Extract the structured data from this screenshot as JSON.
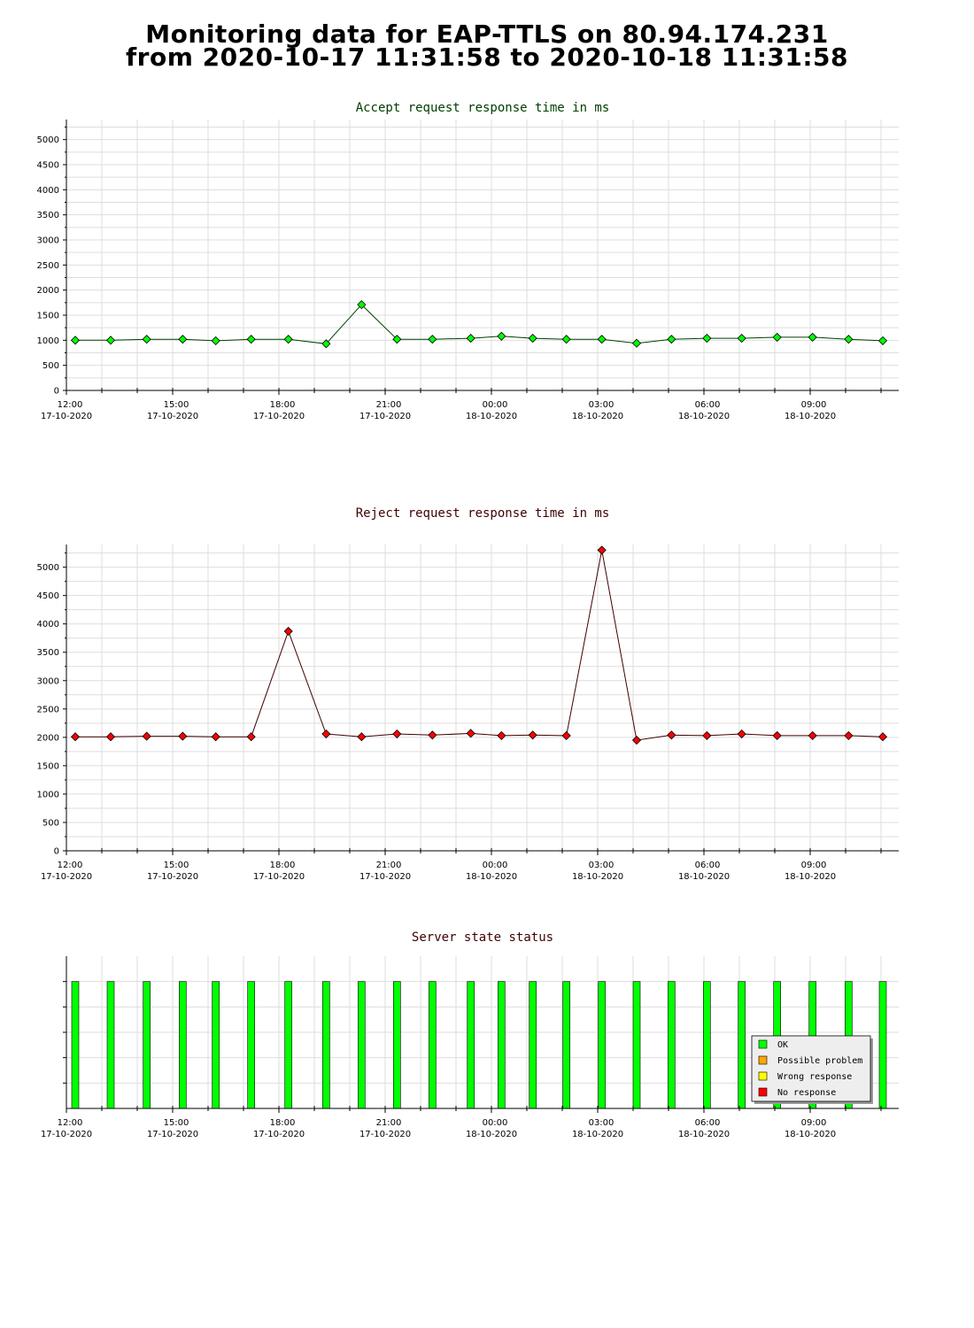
{
  "header": {
    "title_line_1": "Monitoring data for EAP-TTLS on 80.94.174.231",
    "title_line_2": "from 2020-10-17 11:31:58 to 2020-10-18 11:31:58"
  },
  "colors": {
    "accept_title": "#004000",
    "reject_title": "#400000",
    "status_title": "#400000",
    "accept_marker": "#00ff00",
    "reject_marker": "#ff0000",
    "ok": "#00ff00",
    "possible_problem": "#ffa500",
    "wrong_response": "#ffff00",
    "no_response": "#ff0000",
    "grid": "#dddddd"
  },
  "chart_data": [
    {
      "type": "line",
      "title": "Accept request response time in ms",
      "xlabel": "",
      "ylabel": "",
      "ylim": [
        0,
        5400
      ],
      "yticks": [
        0,
        500,
        1000,
        1500,
        2000,
        2500,
        3000,
        3500,
        4000,
        4500,
        5000
      ],
      "xlim": [
        "2020-10-17 12:00",
        "2020-10-18 11:30"
      ],
      "xticks": [
        {
          "time": "12:00",
          "date": "17-10-2020"
        },
        {
          "time": "15:00",
          "date": "17-10-2020"
        },
        {
          "time": "18:00",
          "date": "17-10-2020"
        },
        {
          "time": "21:00",
          "date": "17-10-2020"
        },
        {
          "time": "00:00",
          "date": "18-10-2020"
        },
        {
          "time": "03:00",
          "date": "18-10-2020"
        },
        {
          "time": "06:00",
          "date": "18-10-2020"
        },
        {
          "time": "09:00",
          "date": "18-10-2020"
        }
      ],
      "grid": true,
      "x": [
        "2020-10-17 12:15",
        "2020-10-17 13:15",
        "2020-10-17 14:16",
        "2020-10-17 15:17",
        "2020-10-17 16:13",
        "2020-10-17 17:13",
        "2020-10-17 18:16",
        "2020-10-17 19:20",
        "2020-10-17 20:20",
        "2020-10-17 21:20",
        "2020-10-17 22:20",
        "2020-10-17 23:25",
        "2020-10-18 00:17",
        "2020-10-18 01:10",
        "2020-10-18 02:07",
        "2020-10-18 03:07",
        "2020-10-18 04:06",
        "2020-10-18 05:05",
        "2020-10-18 06:05",
        "2020-10-18 07:04",
        "2020-10-18 08:04",
        "2020-10-18 09:04",
        "2020-10-18 10:05",
        "2020-10-18 11:03"
      ],
      "values": [
        1000,
        1000,
        1020,
        1020,
        990,
        1020,
        1020,
        930,
        1710,
        1020,
        1020,
        1040,
        1080,
        1040,
        1020,
        1020,
        940,
        1020,
        1040,
        1040,
        1060,
        1060,
        1020,
        990
      ]
    },
    {
      "type": "line",
      "title": "Reject request response time in ms",
      "xlabel": "",
      "ylabel": "",
      "ylim": [
        0,
        5400
      ],
      "yticks": [
        0,
        500,
        1000,
        1500,
        2000,
        2500,
        3000,
        3500,
        4000,
        4500,
        5000
      ],
      "xlim": [
        "2020-10-17 12:00",
        "2020-10-18 11:30"
      ],
      "xticks": [
        {
          "time": "12:00",
          "date": "17-10-2020"
        },
        {
          "time": "15:00",
          "date": "17-10-2020"
        },
        {
          "time": "18:00",
          "date": "17-10-2020"
        },
        {
          "time": "21:00",
          "date": "17-10-2020"
        },
        {
          "time": "00:00",
          "date": "18-10-2020"
        },
        {
          "time": "03:00",
          "date": "18-10-2020"
        },
        {
          "time": "06:00",
          "date": "18-10-2020"
        },
        {
          "time": "09:00",
          "date": "18-10-2020"
        }
      ],
      "grid": true,
      "x": [
        "2020-10-17 12:15",
        "2020-10-17 13:15",
        "2020-10-17 14:16",
        "2020-10-17 15:17",
        "2020-10-17 16:13",
        "2020-10-17 17:13",
        "2020-10-17 18:16",
        "2020-10-17 19:20",
        "2020-10-17 20:20",
        "2020-10-17 21:20",
        "2020-10-17 22:20",
        "2020-10-17 23:25",
        "2020-10-18 00:17",
        "2020-10-18 01:10",
        "2020-10-18 02:07",
        "2020-10-18 03:07",
        "2020-10-18 04:06",
        "2020-10-18 05:05",
        "2020-10-18 06:05",
        "2020-10-18 07:04",
        "2020-10-18 08:04",
        "2020-10-18 09:04",
        "2020-10-18 10:05",
        "2020-10-18 11:03"
      ],
      "values": [
        2010,
        2010,
        2020,
        2020,
        2010,
        2010,
        3870,
        2060,
        2010,
        2060,
        2040,
        2070,
        2030,
        2040,
        2030,
        5300,
        1950,
        2040,
        2030,
        2060,
        2030,
        2030,
        2030,
        2010
      ]
    },
    {
      "type": "bar",
      "title": "Server state status",
      "xlim": [
        "2020-10-17 12:00",
        "2020-10-18 11:30"
      ],
      "xticks": [
        {
          "time": "12:00",
          "date": "17-10-2020"
        },
        {
          "time": "15:00",
          "date": "17-10-2020"
        },
        {
          "time": "18:00",
          "date": "17-10-2020"
        },
        {
          "time": "21:00",
          "date": "17-10-2020"
        },
        {
          "time": "00:00",
          "date": "18-10-2020"
        },
        {
          "time": "03:00",
          "date": "18-10-2020"
        },
        {
          "time": "06:00",
          "date": "18-10-2020"
        },
        {
          "time": "09:00",
          "date": "18-10-2020"
        }
      ],
      "x": [
        "2020-10-17 12:15",
        "2020-10-17 13:15",
        "2020-10-17 14:16",
        "2020-10-17 15:17",
        "2020-10-17 16:13",
        "2020-10-17 17:13",
        "2020-10-17 18:16",
        "2020-10-17 19:20",
        "2020-10-17 20:20",
        "2020-10-17 21:20",
        "2020-10-17 22:20",
        "2020-10-17 23:25",
        "2020-10-18 00:17",
        "2020-10-18 01:10",
        "2020-10-18 02:07",
        "2020-10-18 03:07",
        "2020-10-18 04:06",
        "2020-10-18 05:05",
        "2020-10-18 06:05",
        "2020-10-18 07:04",
        "2020-10-18 08:04",
        "2020-10-18 09:04",
        "2020-10-18 10:05",
        "2020-10-18 11:03"
      ],
      "status": [
        "OK",
        "OK",
        "OK",
        "OK",
        "OK",
        "OK",
        "OK",
        "OK",
        "OK",
        "OK",
        "OK",
        "OK",
        "OK",
        "OK",
        "OK",
        "OK",
        "OK",
        "OK",
        "OK",
        "OK",
        "OK",
        "OK",
        "OK",
        "OK"
      ],
      "legend": [
        "OK",
        "Possible problem",
        "Wrong response",
        "No response"
      ],
      "legend_placement": "bottom-right"
    }
  ]
}
